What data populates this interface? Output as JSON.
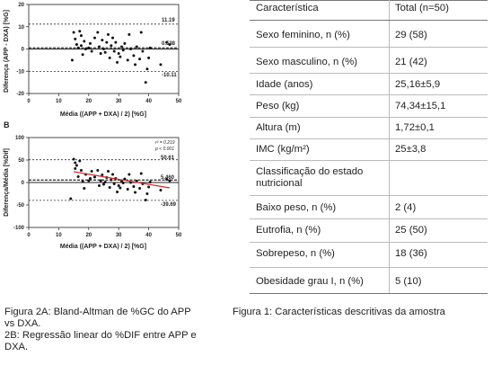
{
  "figure_a": {
    "panel_label": "",
    "ylabel": "Diferença (APP - DXA) [%G]",
    "xlabel": "Média ((APP + DXA) / 2) [%G]",
    "yticks": [
      "20",
      "10",
      "0",
      "-10",
      "-20"
    ],
    "xticks": [
      "0",
      "10",
      "20",
      "30",
      "40",
      "50"
    ],
    "upper_loa": "11.19",
    "mean_bias": "0.538",
    "lower_loa": "-10.11"
  },
  "figure_b": {
    "panel_label": "B",
    "ylabel": "Diferença/Média [%Dif]",
    "xlabel": "Média ((APP + DXA) / 2) [%G]",
    "yticks": [
      "100",
      "50",
      "0",
      "-50",
      "-100"
    ],
    "xticks": [
      "0",
      "10",
      "20",
      "30",
      "40",
      "50"
    ],
    "r_text": "r² = 0.219",
    "p_text": "p < 0.001",
    "upper_loa": "50.61",
    "mean_bias": "5.460",
    "lower_loa": "-39.69"
  },
  "chart_data": [
    {
      "type": "scatter",
      "title": "",
      "xlabel": "Média ((APP + DXA) / 2) [%G]",
      "ylabel": "Diferença (APP - DXA) [%G]",
      "xlim": [
        0,
        50
      ],
      "ylim": [
        -20,
        20
      ],
      "reference_lines": {
        "upper": 11.19,
        "mean": 0.538,
        "lower": -10.11
      },
      "points": [
        [
          15,
          7.5
        ],
        [
          15.5,
          4.5
        ],
        [
          16,
          2
        ],
        [
          16.5,
          0.5
        ],
        [
          17,
          8
        ],
        [
          17.5,
          6
        ],
        [
          17.5,
          1.5
        ],
        [
          18,
          -2.5
        ],
        [
          18.5,
          3.5
        ],
        [
          19,
          0
        ],
        [
          20,
          0.5
        ],
        [
          20.5,
          2.5
        ],
        [
          21,
          -1
        ],
        [
          22,
          5
        ],
        [
          23,
          7.5
        ],
        [
          23.5,
          1
        ],
        [
          24,
          -2
        ],
        [
          24.5,
          4
        ],
        [
          25,
          0
        ],
        [
          25.5,
          -1.5
        ],
        [
          26,
          3
        ],
        [
          26.5,
          6.5
        ],
        [
          27,
          -4
        ],
        [
          27.5,
          1.5
        ],
        [
          28,
          5
        ],
        [
          28.5,
          -1
        ],
        [
          29,
          3
        ],
        [
          29.5,
          -6
        ],
        [
          30,
          -2
        ],
        [
          30.5,
          -3.5
        ],
        [
          31,
          1
        ],
        [
          31.5,
          -0.5
        ],
        [
          32,
          2.5
        ],
        [
          33,
          -5
        ],
        [
          33.5,
          6.5
        ],
        [
          34,
          0
        ],
        [
          35,
          -3
        ],
        [
          35.5,
          -7
        ],
        [
          36,
          1
        ],
        [
          37,
          -4.5
        ],
        [
          37.5,
          7.5
        ],
        [
          38,
          -1
        ],
        [
          39,
          -15
        ],
        [
          39.5,
          -9
        ],
        [
          40,
          -4
        ],
        [
          40.5,
          0.5
        ],
        [
          44,
          -7
        ],
        [
          46,
          3
        ],
        [
          47,
          2
        ],
        [
          14.5,
          -5
        ]
      ]
    },
    {
      "type": "scatter",
      "title": "",
      "xlabel": "Média ((APP + DXA) / 2) [%G]",
      "ylabel": "Diferença/Média [%Dif]",
      "xlim": [
        0,
        50
      ],
      "ylim": [
        -100,
        100
      ],
      "annotations": [
        "r² = 0.219",
        "p < 0.001"
      ],
      "reference_lines": {
        "upper": 50.61,
        "mean": 5.46,
        "lower": -39.69
      },
      "regression_line": {
        "x": [
          15,
          47
        ],
        "y": [
          24,
          -12
        ]
      },
      "points": [
        [
          14,
          -36
        ],
        [
          15,
          52
        ],
        [
          15.5,
          44
        ],
        [
          16,
          38
        ],
        [
          16.5,
          13
        ],
        [
          17,
          48
        ],
        [
          17.5,
          27
        ],
        [
          18,
          2
        ],
        [
          18.5,
          -13
        ],
        [
          19,
          18
        ],
        [
          20,
          4
        ],
        [
          20.5,
          9
        ],
        [
          21,
          25
        ],
        [
          22,
          12
        ],
        [
          23,
          27
        ],
        [
          23.5,
          -7
        ],
        [
          24,
          4
        ],
        [
          24.5,
          17
        ],
        [
          25,
          -4
        ],
        [
          25.5,
          1
        ],
        [
          26,
          11
        ],
        [
          26.5,
          25
        ],
        [
          27,
          -11
        ],
        [
          27.5,
          6
        ],
        [
          28,
          18
        ],
        [
          28.5,
          -3
        ],
        [
          29,
          9
        ],
        [
          29.5,
          -21
        ],
        [
          30,
          -7
        ],
        [
          30.5,
          -12
        ],
        [
          31,
          3
        ],
        [
          31.5,
          -1
        ],
        [
          32,
          8
        ],
        [
          33,
          -15
        ],
        [
          33.5,
          18
        ],
        [
          34,
          0
        ],
        [
          35,
          -9
        ],
        [
          35.5,
          -22
        ],
        [
          36,
          3
        ],
        [
          37,
          -13
        ],
        [
          37.5,
          20
        ],
        [
          38,
          -3
        ],
        [
          39,
          -39
        ],
        [
          39.5,
          -25
        ],
        [
          40,
          -10
        ],
        [
          40.5,
          1
        ],
        [
          44,
          -17
        ],
        [
          46,
          7
        ],
        [
          47,
          4
        ],
        [
          15.5,
          31
        ]
      ]
    }
  ],
  "captions": {
    "figure2": [
      "Figura 2A:  Bland-Altman de %GC do APP",
      "vs DXA.",
      "2B: Regressão linear do %DIF entre APP e",
      "DXA."
    ],
    "figure1": "Figura 1: Características descritivas da amostra"
  },
  "table": {
    "header": [
      "Característica",
      "Total (n=50)"
    ],
    "rows": [
      {
        "label": "Sexo feminino, n (%)",
        "value": "29 (58)"
      },
      {
        "label": "Sexo masculino, n (%)",
        "value": "21 (42)"
      },
      {
        "label": "Idade (anos)",
        "value": "25,16±5,9"
      },
      {
        "label": "Peso (kg)",
        "value": "74,34±15,1"
      },
      {
        "label": "Altura (m)",
        "value": "1,72±0,1"
      },
      {
        "label": "IMC (kg/m²)",
        "value": "25±3,8"
      },
      {
        "label_lines": [
          "Classificação do estado",
          "nutricional"
        ],
        "value": ""
      },
      {
        "label": "Baixo peso, n (%)",
        "value": "2 (4)"
      },
      {
        "label": "Eutrofia, n (%)",
        "value": "25 (50)"
      },
      {
        "label": "Sobrepeso, n (%)",
        "value": "18 (36)"
      },
      {
        "label": "Obesidade grau I, n (%)",
        "value": "5 (10)"
      }
    ]
  }
}
